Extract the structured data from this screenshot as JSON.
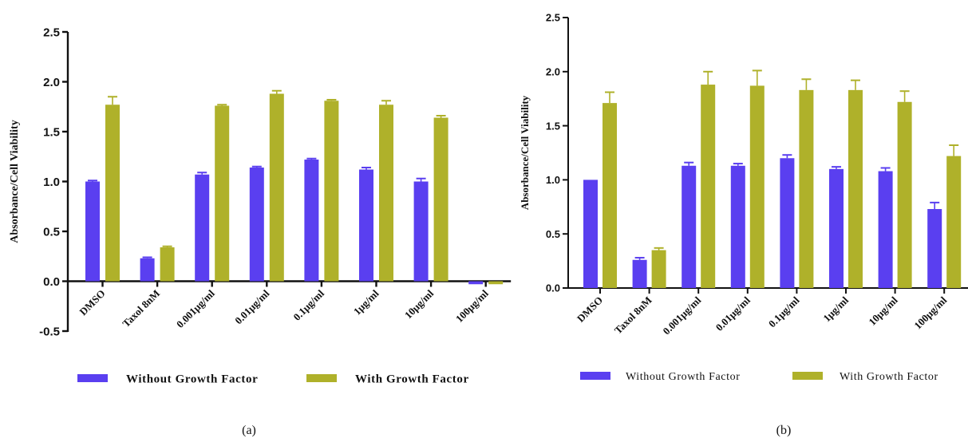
{
  "chart_data": [
    {
      "type": "bar",
      "panel_label": "(a)",
      "ylabel": "Absorbance/Cell Viability",
      "ylim": [
        -0.5,
        2.5
      ],
      "yticks": [
        "-0.5",
        "0.0",
        "0.5",
        "1.0",
        "1.5",
        "2.0",
        "2.5"
      ],
      "categories": [
        "DMSO",
        "Taxol 8nM",
        "0.001μg/ml",
        "0.01μg/ml",
        "0.1μg/ml",
        "1μg/ml",
        "10μg/ml",
        "100μg/ml"
      ],
      "legend_position": "bottom",
      "series": [
        {
          "name": "Without Growth Factor",
          "color": "#5a3ff0",
          "values": [
            1.0,
            0.23,
            1.07,
            1.14,
            1.22,
            1.12,
            1.0,
            -0.03
          ],
          "errors": [
            0.01,
            0.01,
            0.02,
            0.01,
            0.01,
            0.02,
            0.03,
            0.0
          ]
        },
        {
          "name": "With Growth Factor",
          "color": "#afb12a",
          "values": [
            1.77,
            0.34,
            1.76,
            1.88,
            1.81,
            1.77,
            1.64,
            -0.03
          ],
          "errors": [
            0.08,
            0.01,
            0.01,
            0.03,
            0.01,
            0.04,
            0.02,
            0.0
          ]
        }
      ]
    },
    {
      "type": "bar",
      "panel_label": "(b)",
      "ylabel": "Absorbance/Cell Viability",
      "ylim": [
        0.0,
        2.5
      ],
      "yticks": [
        "0.0",
        "0.5",
        "1.0",
        "1.5",
        "2.0",
        "2.5"
      ],
      "categories": [
        "DMSO",
        "Taxol 8nM",
        "0.001μg/ml",
        "0.01μg/ml",
        "0.1μg/ml",
        "1μg/ml",
        "10μg/ml",
        "100μg/ml"
      ],
      "legend_position": "bottom",
      "series": [
        {
          "name": "Without Growth Factor",
          "color": "#5a3ff0",
          "values": [
            1.0,
            0.26,
            1.13,
            1.13,
            1.2,
            1.1,
            1.08,
            0.73
          ],
          "errors": [
            0.0,
            0.02,
            0.03,
            0.02,
            0.03,
            0.02,
            0.03,
            0.06
          ]
        },
        {
          "name": "With Growth Factor",
          "color": "#afb12a",
          "values": [
            1.71,
            0.35,
            1.88,
            1.87,
            1.83,
            1.83,
            1.72,
            1.22
          ],
          "errors": [
            0.1,
            0.02,
            0.12,
            0.14,
            0.1,
            0.09,
            0.1,
            0.1
          ]
        }
      ]
    }
  ]
}
